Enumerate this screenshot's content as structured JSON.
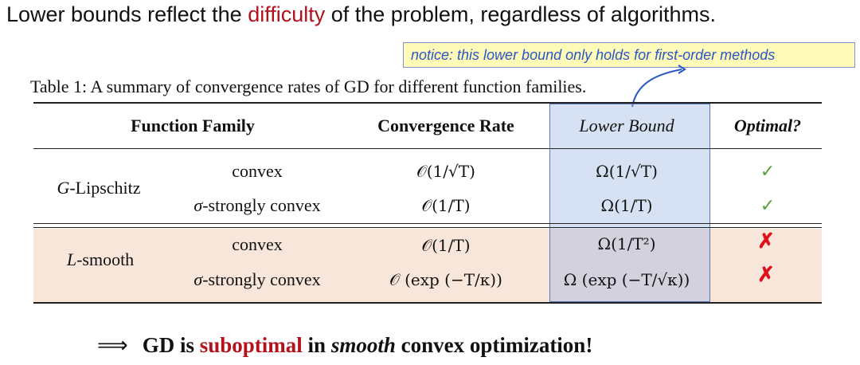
{
  "headline": {
    "prefix": "Lower bounds reflect the ",
    "highlight": "difficulty",
    "suffix": " of the problem, regardless of algorithms.",
    "highlight_color": "#b3121c"
  },
  "notice": {
    "text": "notice: this lower bound only holds for first-order methods",
    "background": "#fdfbb7",
    "text_color": "#2b55c8"
  },
  "caption": "Table 1: A summary of convergence rates of GD for different function families.",
  "table": {
    "headers": {
      "family": "Function Family",
      "rate": "Convergence Rate",
      "lower": "Lower Bound",
      "optimal": "Optimal?"
    },
    "groups": [
      {
        "family_var": "G",
        "family_rest": "-Lipschitz",
        "rows": [
          {
            "sub": "convex",
            "sub_sigma": "",
            "rate": "𝒪(1/√T)",
            "lower": "Ω(1/√T)",
            "optimal": "✓"
          },
          {
            "sub": "-strongly convex",
            "sub_sigma": "σ",
            "rate": "𝒪(1/T)",
            "lower": "Ω(1/T)",
            "optimal": "✓"
          }
        ]
      },
      {
        "family_var": "L",
        "family_rest": "-smooth",
        "rows": [
          {
            "sub": "convex",
            "sub_sigma": "",
            "rate": "𝒪(1/T)",
            "lower": "Ω(1/T²)",
            "optimal": "✗"
          },
          {
            "sub": "-strongly convex",
            "sub_sigma": "σ",
            "rate": "𝒪 (exp (−T/κ))",
            "lower": "Ω (exp (−T/√κ))",
            "optimal": "✗"
          }
        ]
      }
    ],
    "colors": {
      "check": "#5a9e3a",
      "cross": "#e0101a",
      "band": "#f9e6da",
      "lower_bound_box": "#5a78b8"
    }
  },
  "conclusion": {
    "arrow": "⟹",
    "part1": "GD is ",
    "highlight": "suboptimal",
    "part2": " in ",
    "emph": "smooth",
    "part3": " convex optimization!"
  }
}
